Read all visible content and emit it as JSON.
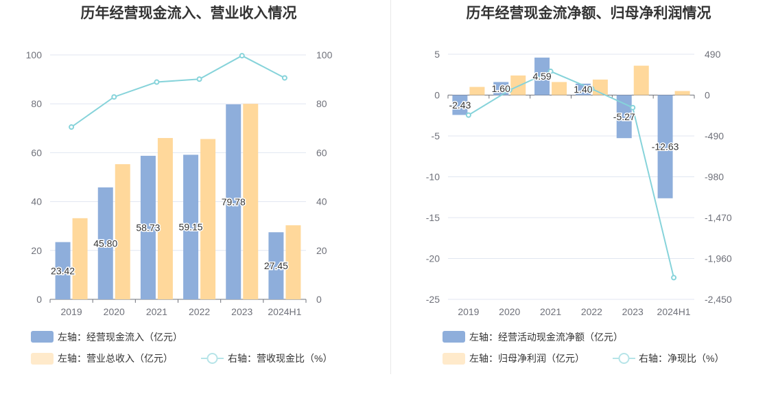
{
  "colors": {
    "bar_primary": "#8eaedb",
    "bar_secondary": "#ffd89b",
    "line": "#86d3da",
    "grid": "#e0e6f1",
    "axis": "#6e7079"
  },
  "chart_data": [
    {
      "type": "bar",
      "title": "历年经营现金流入、营业收入情况",
      "categories": [
        "2019",
        "2020",
        "2021",
        "2022",
        "2023",
        "2024H1"
      ],
      "left_axis": {
        "ticks": [
          "0",
          "20",
          "40",
          "60",
          "80",
          "100"
        ],
        "ylim": [
          0,
          100
        ]
      },
      "right_axis": {
        "ticks": [
          "0",
          "20",
          "40",
          "60",
          "80",
          "100"
        ],
        "ylim": [
          0,
          100
        ]
      },
      "series": [
        {
          "name": "左轴：经营现金流入（亿元）",
          "axis": "left",
          "kind": "bar",
          "values": [
            23.42,
            45.8,
            58.73,
            59.15,
            79.78,
            27.45
          ],
          "labels": [
            "23.42",
            "45.80",
            "58.73",
            "59.15",
            "79.78",
            "27.45"
          ]
        },
        {
          "name": "左轴：营业总收入（亿元）",
          "axis": "left",
          "kind": "bar",
          "values": [
            33.2,
            55.3,
            66.0,
            65.6,
            80.0,
            30.3
          ]
        },
        {
          "name": "右轴：营收现金比（%）",
          "axis": "right",
          "kind": "line",
          "values": [
            70.5,
            82.8,
            88.9,
            90.1,
            99.7,
            90.6
          ]
        }
      ]
    },
    {
      "type": "bar",
      "title": "历年经营现金流净额、归母净利润情况",
      "categories": [
        "2019",
        "2020",
        "2021",
        "2022",
        "2023",
        "2024H1"
      ],
      "left_axis": {
        "ticks": [
          "5",
          "0",
          "-5",
          "-10",
          "-15",
          "-20",
          "-25"
        ],
        "ylim": [
          -25,
          5
        ]
      },
      "right_axis": {
        "ticks": [
          "490",
          "0",
          "-490",
          "-980",
          "-1,470",
          "-1,960",
          "-2,450"
        ],
        "ylim": [
          -2450,
          490
        ]
      },
      "series": [
        {
          "name": "左轴：经营活动现金流净额（亿元）",
          "axis": "left",
          "kind": "bar",
          "values": [
            -2.43,
            1.6,
            4.59,
            1.4,
            -5.27,
            -12.63
          ],
          "labels": [
            "-2.43",
            "1.60",
            "4.59",
            "1.40",
            "-5.27",
            "-12.63"
          ]
        },
        {
          "name": "左轴：归母净利润（亿元）",
          "axis": "left",
          "kind": "bar",
          "values": [
            1.0,
            2.4,
            1.6,
            1.9,
            3.6,
            0.5
          ]
        },
        {
          "name": "右轴：净现比（%）",
          "axis": "right",
          "kind": "line",
          "values": [
            -240,
            60,
            285,
            75,
            -150,
            -2190
          ]
        }
      ]
    }
  ]
}
